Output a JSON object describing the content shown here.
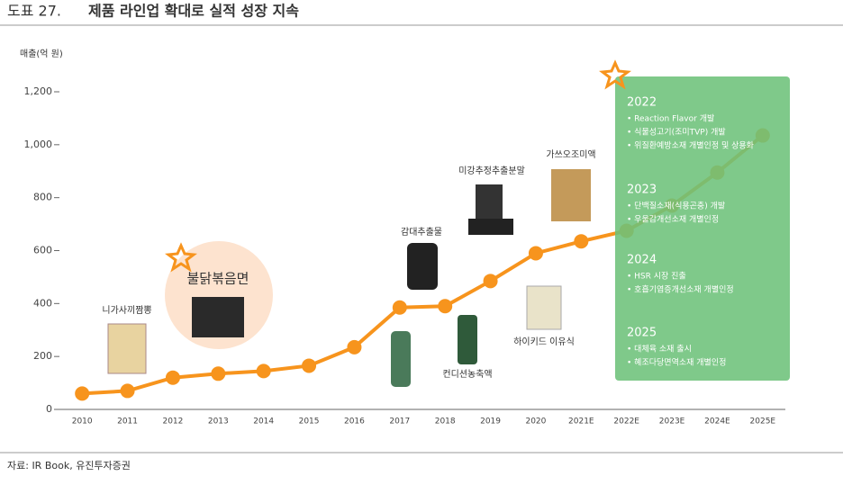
{
  "chart_data": {
    "type": "line",
    "figure_label": "도표 27.",
    "title": "제품 라인업 확대로 실적 성장 지속",
    "y_label": "매출(억 원)",
    "categories": [
      "2010",
      "2011",
      "2012",
      "2013",
      "2014",
      "2015",
      "2016",
      "2017",
      "2018",
      "2019",
      "2020",
      "2021E",
      "2022E",
      "2023E",
      "2024E",
      "2025E"
    ],
    "values": [
      60,
      70,
      120,
      135,
      145,
      165,
      235,
      385,
      390,
      485,
      590,
      635,
      675,
      770,
      895,
      1035
    ],
    "color": "#f7941d",
    "ylim": [
      0,
      1200
    ],
    "yticks": [
      0,
      200,
      400,
      600,
      800,
      {
        "value": 1000,
        "label": "1,000"
      },
      {
        "value": 1200,
        "label": "1,200"
      }
    ],
    "annotations": [
      "니가사끼짬뽕",
      "불닭볶음면",
      "감대추출물",
      "미강추정추출분말",
      "가쓰오조미액",
      "컨디션농축액",
      "하이키드 이유식"
    ],
    "roadmap": [
      {
        "year": "2022",
        "items": [
          "• Reaction Flavor 개발",
          "• 식물성고기(조미TVP) 개발",
          "• 위질환예방소재 개별인정 및 상용화"
        ]
      },
      {
        "year": "2023",
        "items": [
          "• 단백질소재(식용곤충) 개발",
          "• 우울감개선소재 개별인정"
        ]
      },
      {
        "year": "2024",
        "items": [
          "• HSR 시장 진출",
          "• 호흡기염증개선소재 개별인정"
        ]
      },
      {
        "year": "2025",
        "items": [
          "• 대체육 소재 출시",
          "• 혜조다당면역소재 개별인정"
        ]
      }
    ],
    "source": "자료: IR Book, 유진투자증권"
  }
}
